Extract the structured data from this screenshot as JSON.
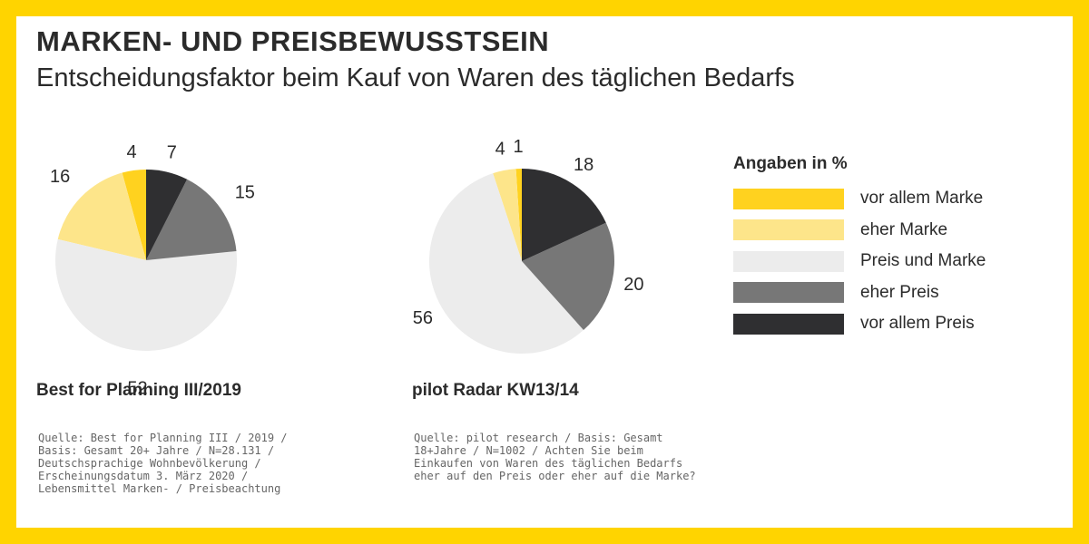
{
  "header": {
    "title": "MARKEN- UND PREISBEWUSSTSEIN",
    "subtitle": "Entscheidungsfaktor beim Kauf von Waren des täglichen Bedarfs"
  },
  "legend": {
    "title": "Angaben in %",
    "items": [
      {
        "label": "vor allem Marke",
        "color": "#ffd21f"
      },
      {
        "label": "eher Marke",
        "color": "#fde58a"
      },
      {
        "label": "Preis und Marke",
        "color": "#ececec"
      },
      {
        "label": "eher Preis",
        "color": "#777777"
      },
      {
        "label": "vor allem Preis",
        "color": "#2f2f31"
      }
    ]
  },
  "chart_data": [
    {
      "type": "pie",
      "caption": "Best for Planning III/2019",
      "categories": [
        "vor allem Marke",
        "eher Marke",
        "Preis und Marke",
        "eher Preis",
        "vor allem Preis"
      ],
      "values": [
        4,
        16,
        52,
        15,
        7
      ],
      "source": "Quelle: Best for Planning III / 2019 / Basis: Gesamt 20+ Jahre / N=28.131 / Deutschsprachige Wohnbevölkerung / Erscheinungsdatum 3. März 2020 / Lebensmittel Marken- / Preisbeachtung"
    },
    {
      "type": "pie",
      "caption": "pilot Radar KW13/14",
      "categories": [
        "vor allem Marke",
        "eher Marke",
        "Preis und Marke",
        "eher Preis",
        "vor allem Preis"
      ],
      "values": [
        1,
        4,
        56,
        20,
        18
      ],
      "source": "Quelle: pilot research / Basis: Gesamt 18+Jahre / N=1002 / Achten Sie beim Einkaufen von Waren des täglichen Bedarfs eher auf den Preis oder eher auf die Marke?"
    }
  ]
}
